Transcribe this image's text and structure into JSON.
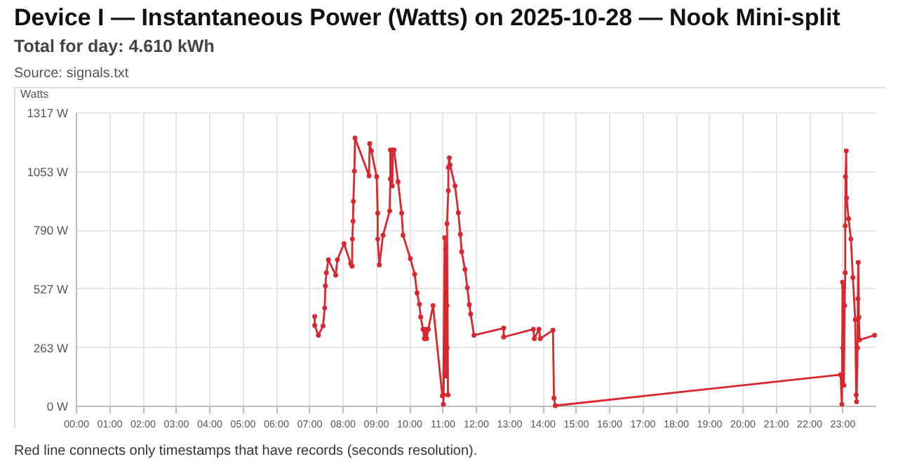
{
  "chart_data": {
    "type": "line",
    "title": "Device I — Instantaneous Power (Watts) on 2025-10-28 — Nook Mini-split",
    "subtitle": "Total for day: 4.610 kWh",
    "ylabel": "Watts",
    "annotations": [
      "Source: signals.txt",
      "Red line connects only timestamps that have records (seconds resolution)."
    ],
    "xlim": [
      0,
      24
    ],
    "xticks": [
      {
        "value": 0,
        "label": "00:00"
      },
      {
        "value": 1,
        "label": "01:00"
      },
      {
        "value": 2,
        "label": "02:00"
      },
      {
        "value": 3,
        "label": "03:00"
      },
      {
        "value": 4,
        "label": "04:00"
      },
      {
        "value": 5,
        "label": "05:00"
      },
      {
        "value": 6,
        "label": "06:00"
      },
      {
        "value": 7,
        "label": "07:00"
      },
      {
        "value": 8,
        "label": "08:00"
      },
      {
        "value": 9,
        "label": "09:00"
      },
      {
        "value": 10,
        "label": "10:00"
      },
      {
        "value": 11,
        "label": "11:00"
      },
      {
        "value": 12,
        "label": "12:00"
      },
      {
        "value": 13,
        "label": "13:00"
      },
      {
        "value": 14,
        "label": "14:00"
      },
      {
        "value": 15,
        "label": "15:00"
      },
      {
        "value": 16,
        "label": "16:00"
      },
      {
        "value": 17,
        "label": "17:00"
      },
      {
        "value": 18,
        "label": "18:00"
      },
      {
        "value": 19,
        "label": "19:00"
      },
      {
        "value": 20,
        "label": "20:00"
      },
      {
        "value": 21,
        "label": "21:00"
      },
      {
        "value": 22,
        "label": "22:00"
      },
      {
        "value": 23,
        "label": "23:00"
      }
    ],
    "ylim": [
      0,
      1317
    ],
    "yticks": [
      {
        "value": 0,
        "label": "0 W"
      },
      {
        "value": 263,
        "label": "263 W"
      },
      {
        "value": 527,
        "label": "527 W"
      },
      {
        "value": 790,
        "label": "790 W"
      },
      {
        "value": 1053,
        "label": "1053 W"
      },
      {
        "value": 1317,
        "label": "1317 W"
      }
    ],
    "grid": true,
    "marker": "circle",
    "line_style": "solid",
    "series": [
      {
        "color": "#d9262f",
        "x": [
          7.17,
          7.17,
          7.28,
          7.42,
          7.47,
          7.49,
          7.52,
          7.58,
          7.8,
          7.85,
          8.05,
          8.25,
          8.29,
          8.3,
          8.32,
          8.33,
          8.36,
          8.38,
          8.8,
          8.82,
          8.87,
          9.03,
          9.06,
          9.06,
          9.11,
          9.22,
          9.42,
          9.44,
          9.44,
          9.5,
          9.51,
          9.55,
          9.67,
          9.78,
          9.82,
          10.04,
          10.17,
          10.24,
          10.31,
          10.35,
          10.42,
          10.46,
          10.49,
          10.53,
          10.58,
          10.72,
          11.0,
          11.03,
          11.07,
          11.1,
          11.03,
          11.11,
          11.14,
          11.11,
          11.14,
          11.17,
          11.14,
          11.18,
          11.18,
          11.21,
          11.23,
          11.38,
          11.48,
          11.54,
          11.58,
          11.68,
          11.75,
          11.81,
          11.85,
          11.95,
          12.84,
          12.84,
          13.73,
          13.76,
          13.9,
          13.94,
          14.32,
          14.35,
          14.39,
          22.95,
          22.99,
          23.01,
          23.02,
          23.04,
          23.05,
          23.07,
          23.09,
          23.09,
          23.1,
          23.12,
          23.13,
          23.19,
          23.26,
          23.32,
          23.39,
          23.42,
          23.43,
          23.46,
          23.47,
          23.48,
          23.5,
          23.52,
          23.97
        ],
        "values": [
          400,
          360,
          316,
          358,
          438,
          537,
          596,
          655,
          586,
          655,
          727,
          638,
          626,
          748,
          828,
          917,
          1053,
          1201,
          1032,
          1176,
          1144,
          1028,
          864,
          748,
          632,
          765,
          874,
          1018,
          1148,
          986,
          1148,
          1148,
          1005,
          864,
          765,
          660,
          590,
          506,
          455,
          398,
          343,
          301,
          343,
          301,
          343,
          449,
          44,
          48,
          754,
          702,
          6,
          575,
          259,
          133,
          449,
          48,
          817,
          965,
          1070,
          1112,
          1081,
          986,
          866,
          769,
          691,
          611,
          529,
          453,
          411,
          316,
          348,
          308,
          343,
          301,
          343,
          301,
          339,
          34,
          0,
          139,
          6,
          554,
          259,
          533,
          91,
          449,
          596,
          807,
          1028,
          1144,
          933,
          839,
          748,
          575,
          386,
          48,
          17,
          259,
          480,
          643,
          396,
          295,
          316
        ]
      }
    ]
  }
}
